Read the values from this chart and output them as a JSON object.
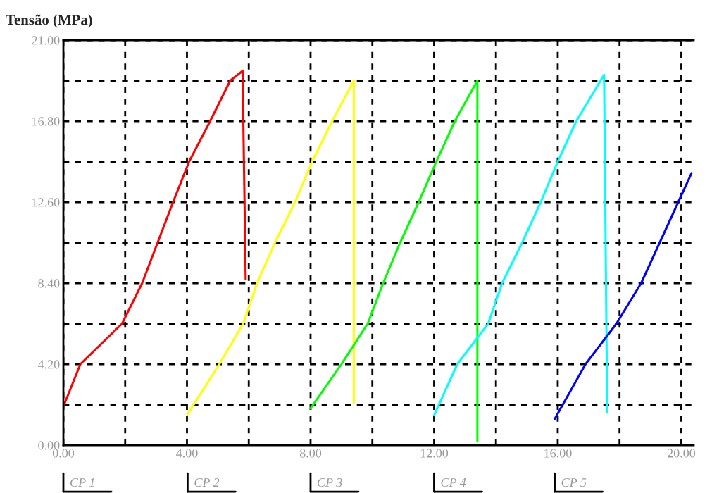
{
  "chart_data": {
    "type": "line",
    "ylabel": "Tensão (MPa)",
    "xlim": [
      0,
      20.4
    ],
    "ylim": [
      0,
      21
    ],
    "xticks": [
      {
        "value": 0,
        "label": "0.00"
      },
      {
        "value": 2,
        "label": null
      },
      {
        "value": 4,
        "label": "4.00"
      },
      {
        "value": 6,
        "label": null
      },
      {
        "value": 8,
        "label": "8.00"
      },
      {
        "value": 10,
        "label": null
      },
      {
        "value": 12,
        "label": "12.00"
      },
      {
        "value": 14,
        "label": null
      },
      {
        "value": 16,
        "label": "16.00"
      },
      {
        "value": 18,
        "label": null
      },
      {
        "value": 20,
        "label": "20.00"
      }
    ],
    "yticks": [
      {
        "value": 0,
        "label": "0.00"
      },
      {
        "value": 2.1,
        "label": null
      },
      {
        "value": 4.2,
        "label": "4.20"
      },
      {
        "value": 6.3,
        "label": null
      },
      {
        "value": 8.4,
        "label": "8.40"
      },
      {
        "value": 10.5,
        "label": null
      },
      {
        "value": 12.6,
        "label": "12.60"
      },
      {
        "value": 14.7,
        "label": null
      },
      {
        "value": 16.8,
        "label": "16.80"
      },
      {
        "value": 18.9,
        "label": null
      },
      {
        "value": 21,
        "label": "21.00"
      }
    ],
    "grid": true,
    "line_style": "solid",
    "marker": "none",
    "annotations": [
      "CP 1",
      "CP 2",
      "CP 3",
      "CP 4",
      "CP 5"
    ],
    "series": [
      {
        "color": "#ff0000",
        "x": [
          0,
          0.55,
          1.9,
          2.55,
          3.55,
          4.07,
          4.75,
          5.4,
          5.8,
          5.9
        ],
        "values": [
          2.0,
          4.2,
          6.3,
          8.4,
          12.6,
          14.7,
          16.8,
          18.9,
          19.4,
          8.6
        ]
      },
      {
        "color": "#ffff00",
        "x": [
          4.02,
          5.05,
          5.82,
          6.27,
          6.85,
          7.5,
          8.05,
          8.7,
          9.4,
          9.4
        ],
        "values": [
          1.6,
          4.2,
          6.3,
          8.4,
          10.5,
          12.6,
          14.7,
          16.8,
          18.9,
          2.2
        ]
      },
      {
        "color": "#00ff00",
        "x": [
          8.0,
          9.0,
          9.85,
          10.35,
          10.9,
          11.5,
          12.07,
          12.67,
          13.4,
          13.4
        ],
        "values": [
          1.9,
          4.2,
          6.3,
          8.4,
          10.5,
          12.6,
          14.7,
          16.8,
          18.9,
          0.2
        ]
      },
      {
        "color": "#00ffff",
        "x": [
          12.0,
          12.75,
          13.75,
          14.2,
          14.85,
          15.45,
          16.0,
          16.6,
          17.5,
          17.6
        ],
        "values": [
          1.55,
          4.2,
          6.3,
          8.4,
          10.5,
          12.6,
          14.7,
          16.8,
          19.2,
          1.7
        ]
      },
      {
        "color": "#0000ff",
        "x": [
          15.9,
          16.9,
          17.9,
          18.7,
          19.3,
          19.9,
          20.33
        ],
        "values": [
          1.35,
          4.2,
          6.3,
          8.4,
          10.5,
          12.6,
          14.1
        ]
      }
    ]
  }
}
